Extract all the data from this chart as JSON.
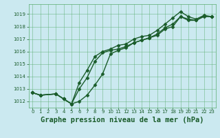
{
  "title": "Graphe pression niveau de la mer (hPa)",
  "bg_color": "#cbe9f0",
  "grid_color": "#5aad70",
  "line_color": "#1a5c2a",
  "xlim": [
    -0.5,
    23.5
  ],
  "ylim": [
    1011.5,
    1019.8
  ],
  "yticks": [
    1012,
    1013,
    1014,
    1015,
    1016,
    1017,
    1018,
    1019
  ],
  "xticks": [
    0,
    1,
    2,
    3,
    4,
    5,
    6,
    7,
    8,
    9,
    10,
    11,
    12,
    13,
    14,
    15,
    16,
    17,
    18,
    19,
    20,
    21,
    22,
    23
  ],
  "line1_x": [
    0,
    1,
    3,
    4,
    5,
    6,
    7,
    8,
    9,
    10,
    11,
    12,
    13,
    14,
    15,
    16,
    17,
    18,
    19,
    20,
    21,
    22,
    23
  ],
  "line1_y": [
    1012.7,
    1012.5,
    1012.6,
    1012.2,
    1011.8,
    1013.5,
    1014.5,
    1015.6,
    1016.0,
    1016.2,
    1016.5,
    1016.6,
    1017.0,
    1017.2,
    1017.3,
    1017.7,
    1018.2,
    1018.7,
    1019.2,
    1018.8,
    1018.6,
    1018.9,
    1018.8
  ],
  "line2_x": [
    0,
    1,
    3,
    4,
    5,
    6,
    7,
    8,
    9,
    10,
    11,
    12,
    13,
    14,
    15,
    16,
    17,
    18,
    19,
    20,
    21,
    22,
    23
  ],
  "line2_y": [
    1012.7,
    1012.5,
    1012.6,
    1012.2,
    1011.8,
    1013.0,
    1013.9,
    1015.2,
    1015.9,
    1016.1,
    1016.2,
    1016.4,
    1016.7,
    1016.9,
    1017.1,
    1017.4,
    1017.9,
    1018.2,
    1018.8,
    1018.6,
    1018.5,
    1018.85,
    1018.8
  ],
  "line3_x": [
    0,
    1,
    3,
    4,
    5,
    6,
    7,
    8,
    9,
    10,
    11,
    12,
    13,
    14,
    15,
    16,
    17,
    18,
    19,
    20,
    21,
    22,
    23
  ],
  "line3_y": [
    1012.7,
    1012.5,
    1012.6,
    1012.2,
    1011.8,
    1012.0,
    1012.5,
    1013.3,
    1014.2,
    1015.8,
    1016.1,
    1016.3,
    1016.7,
    1016.9,
    1017.1,
    1017.3,
    1017.8,
    1018.0,
    1018.8,
    1018.5,
    1018.5,
    1018.8,
    1018.8
  ],
  "marker": "D",
  "markersize": 2.5,
  "linewidth": 1.0,
  "title_fontsize": 7.5,
  "tick_fontsize": 5.0,
  "fig_width": 3.2,
  "fig_height": 2.0,
  "fig_dpi": 100
}
